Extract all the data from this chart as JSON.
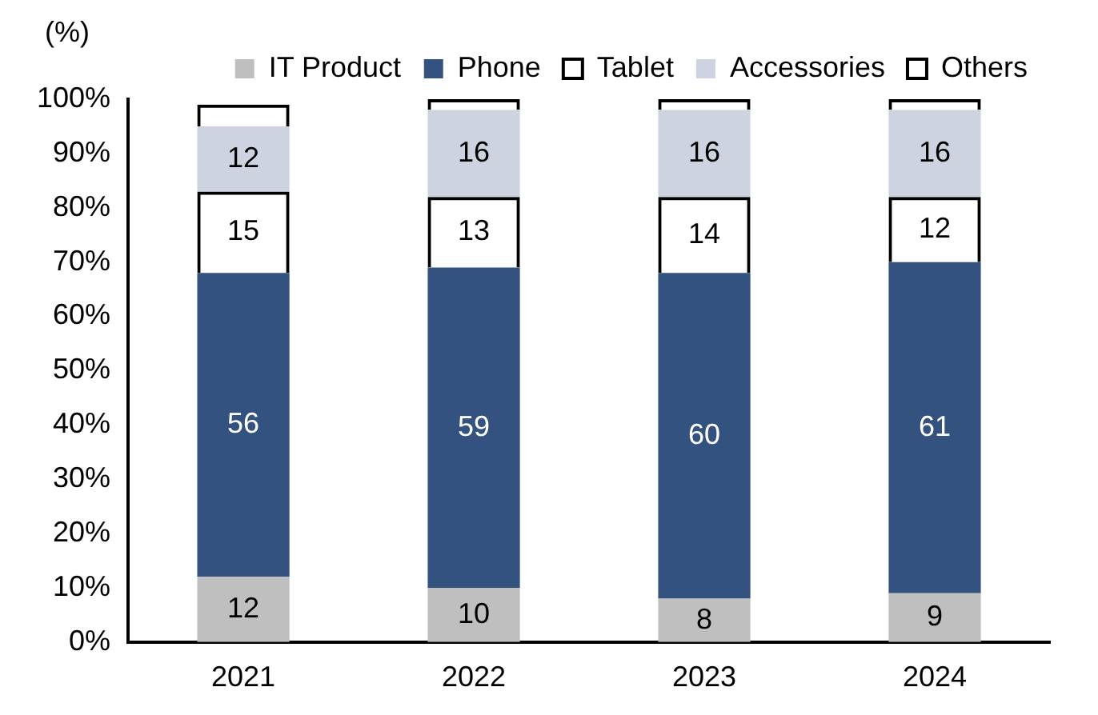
{
  "chart_data": {
    "type": "bar",
    "stacked": true,
    "ylabel": "(%)",
    "categories": [
      "2021",
      "2022",
      "2023",
      "2024"
    ],
    "series": [
      {
        "name": "IT Product",
        "color": "#bfbfbf",
        "values": [
          12,
          10,
          8,
          9
        ],
        "value_labels": [
          "12",
          "10",
          "8",
          "9"
        ]
      },
      {
        "name": "Phone",
        "color": "#335280",
        "values": [
          56,
          59,
          60,
          61
        ],
        "value_labels": [
          "56",
          "59",
          "60",
          "61"
        ]
      },
      {
        "name": "Tablet",
        "color": "#000000",
        "values": [
          15,
          13,
          14,
          12
        ],
        "value_labels": [
          "15",
          "13",
          "14",
          "12"
        ]
      },
      {
        "name": "Accessories",
        "color": "#cdd3e0",
        "values": [
          12,
          16,
          16,
          16
        ],
        "value_labels": [
          "12",
          "16",
          "16",
          "16"
        ]
      },
      {
        "name": "Others",
        "color": "#000000",
        "values": [
          4,
          2,
          2,
          2
        ]
      }
    ],
    "ylim": [
      0,
      100
    ],
    "yticks": [
      {
        "value": 0,
        "label": "0%"
      },
      {
        "value": 10,
        "label": "10%"
      },
      {
        "value": 20,
        "label": "20%"
      },
      {
        "value": 30,
        "label": "30%"
      },
      {
        "value": 40,
        "label": "40%"
      },
      {
        "value": 50,
        "label": "50%"
      },
      {
        "value": 60,
        "label": "60%"
      },
      {
        "value": 70,
        "label": "70%"
      },
      {
        "value": 80,
        "label": "80%"
      },
      {
        "value": 90,
        "label": "90%"
      },
      {
        "value": 100,
        "label": "100%"
      }
    ],
    "grid": false,
    "legend": "top"
  }
}
